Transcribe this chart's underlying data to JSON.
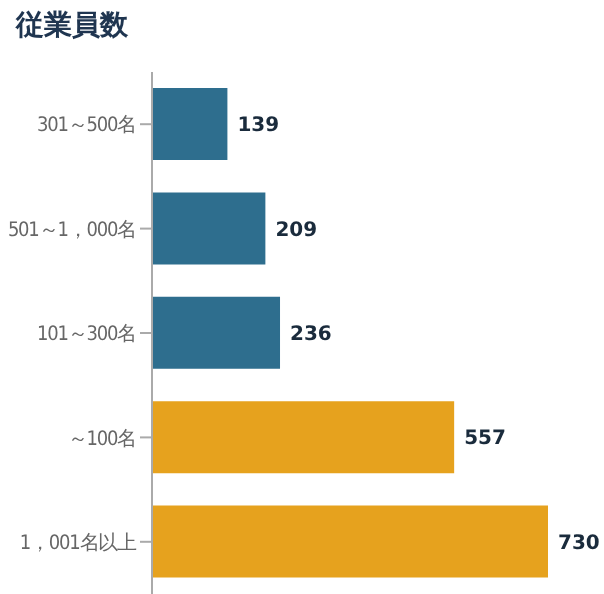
{
  "chart_data": {
    "type": "bar",
    "orientation": "horizontal",
    "title": "従業員数",
    "categories": [
      "301～500名",
      "501～1，000名",
      "101～300名",
      "～100名",
      "1，001名以上"
    ],
    "values": [
      139,
      209,
      236,
      557,
      730
    ],
    "colors": [
      "#2e6e8e",
      "#2e6e8e",
      "#2e6e8e",
      "#e6a21e",
      "#e6a21e"
    ],
    "data_labels": true
  }
}
